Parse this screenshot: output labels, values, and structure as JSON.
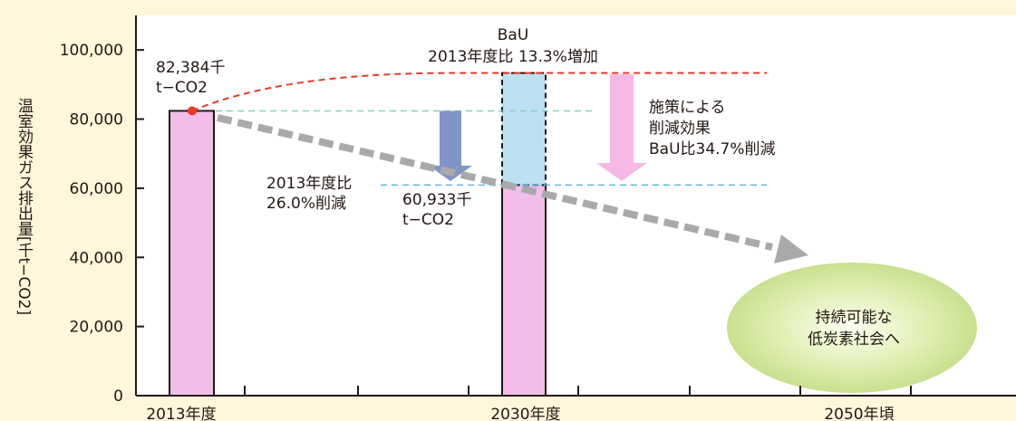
{
  "chart_data": {
    "type": "bar",
    "ylabel": "温室効果ガス排出量[千t−CO2]",
    "yticks": [
      "0",
      "20,000",
      "40,000",
      "60,000",
      "80,000",
      "100,000"
    ],
    "ylim": [
      0,
      110000
    ],
    "categories": [
      "2013年度",
      "2030年度",
      "2050年頃"
    ],
    "values": [
      82384,
      60933,
      null
    ],
    "bau_value": 93340,
    "annotations": {
      "base_line1": "82,384千",
      "base_line2": "t−CO2",
      "target_line1": "60,933千",
      "target_line2": "t−CO2",
      "reduction_line1": "2013年度比",
      "reduction_line2": "26.0%削減",
      "bau_line1": "BaU",
      "bau_line2": "2013年度比 13.3%増加",
      "policy_line1": "施策による",
      "policy_line2": "削減効果",
      "policy_line3": "BaU比34.7%削減",
      "goal_line1": "持続可能な",
      "goal_line2": "低炭素社会へ"
    },
    "colors": {
      "bar": "#f2bde8",
      "bau_bar": "#bde0f3",
      "bau_curve": "#e83828",
      "base_line": "#7fd3c0",
      "target_line": "#5bb5e8",
      "down_arrow": "#8094c8",
      "policy_arrow": "#f4b8e4",
      "trend_arrow": "#a9a9a9",
      "goal_fill": "#c9e08e"
    },
    "grid": false,
    "legend": "none"
  }
}
